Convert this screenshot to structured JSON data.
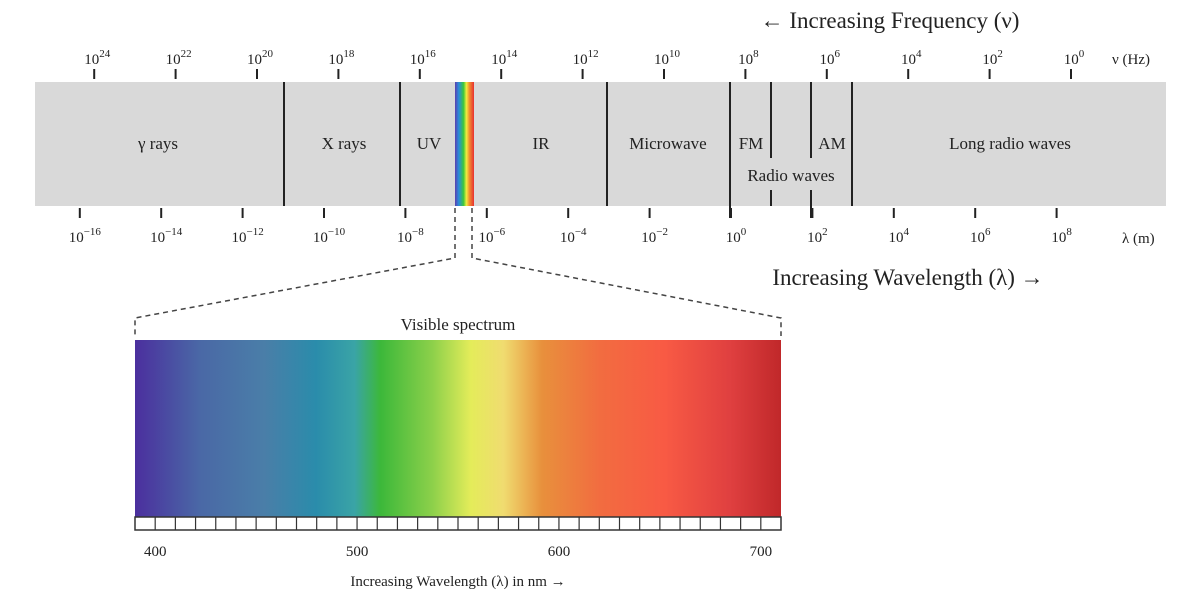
{
  "frequency_title": "← Increasing Frequency (ν)",
  "frequency_unit": "ν (Hz)",
  "frequency_exponents": [
    24,
    22,
    20,
    18,
    16,
    14,
    12,
    10,
    8,
    6,
    4,
    2,
    0
  ],
  "wavelength_exponents": [
    -16,
    -14,
    -12,
    -10,
    -8,
    -6,
    -4,
    -2,
    0,
    2,
    4,
    6,
    8
  ],
  "wavelength_unit": "λ (m)",
  "wavelength_title": "Increasing Wavelength (λ) →",
  "bands": {
    "gamma": "γ rays",
    "xray": "X rays",
    "uv": "UV",
    "ir": "IR",
    "microwave": "Microwave",
    "fm": "FM",
    "am": "AM",
    "radio": "Radio waves",
    "long_radio": "Long radio waves"
  },
  "visible": {
    "title": "Visible spectrum",
    "range_nm": [
      390,
      710
    ],
    "tick_labels": [
      "400",
      "500",
      "600",
      "700"
    ],
    "caption": "Increasing Wavelength (λ) in nm →"
  },
  "colors": {
    "band": "#d9d9d9",
    "line": "#222222"
  }
}
